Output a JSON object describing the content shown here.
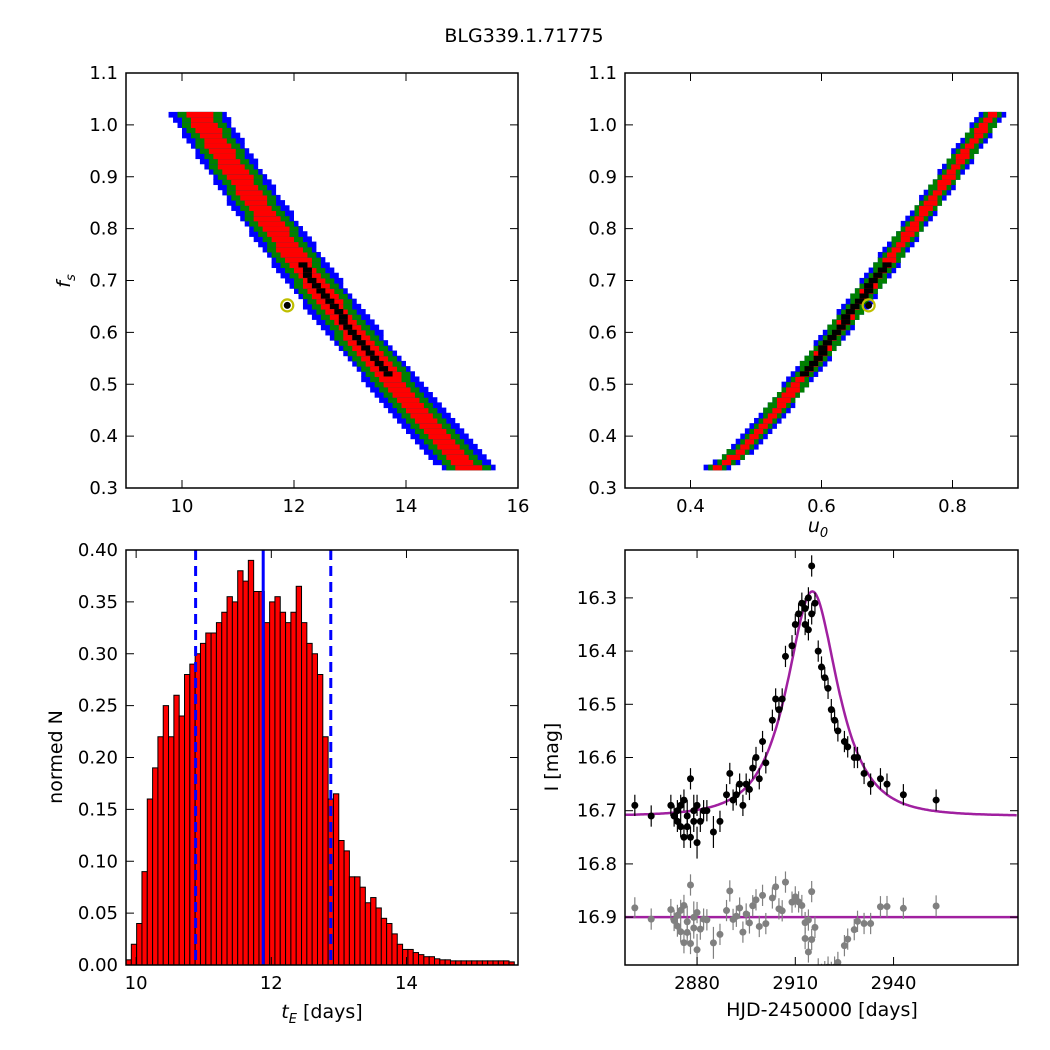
{
  "figure_title": "BLG339.1.71775",
  "colors": {
    "level1": "#ff0000",
    "level2": "#008000",
    "level3": "#0000ff",
    "best": "#000000",
    "marker_ring": "#bfbf00",
    "hist_bar": "#ff0000",
    "vline": "#0000ff",
    "model": "#a020a0",
    "data": "#000000",
    "residual": "#808080"
  },
  "chart_data": [
    {
      "type": "heatmap",
      "panel": "top-left",
      "xlabel": "",
      "ylabel": "f_s",
      "xlim": [
        9,
        16
      ],
      "ylim": [
        0.3,
        1.1
      ],
      "xticks": [
        "10",
        "12",
        "14",
        "16"
      ],
      "yticks": [
        "0.3",
        "0.4",
        "0.5",
        "0.6",
        "0.7",
        "0.8",
        "0.9",
        "1.0",
        "1.1"
      ],
      "band": {
        "fs_range": [
          0.34,
          1.02
        ],
        "center_at_fs1": 10.3,
        "center_at_fs034": 15.1,
        "half_width_red": 0.22,
        "half_width_green": 0.38,
        "half_width_blue": 0.5
      },
      "best_fit": {
        "x": 11.88,
        "y": 0.652
      }
    },
    {
      "type": "heatmap",
      "panel": "top-right",
      "xlabel": "u_0",
      "ylabel": "",
      "xlim": [
        0.3,
        0.9
      ],
      "ylim": [
        0.3,
        1.1
      ],
      "xticks": [
        "0.4",
        "0.6",
        "0.8"
      ],
      "yticks": [
        "0.3",
        "0.4",
        "0.5",
        "0.6",
        "0.7",
        "0.8",
        "0.9",
        "1.0",
        "1.1"
      ],
      "band": {
        "fs_range": [
          0.34,
          1.02
        ],
        "center_at_fs034": 0.44,
        "center_at_fs1": 0.86,
        "half_width_red": 0.008,
        "half_width_green": 0.016,
        "half_width_blue": 0.02
      },
      "best_fit": {
        "x": 0.672,
        "y": 0.652
      }
    },
    {
      "type": "bar",
      "panel": "bottom-left",
      "xlabel": "t_E [days]",
      "ylabel": "normed N",
      "xlim": [
        9.85,
        15.65
      ],
      "ylim": [
        0.0,
        0.4
      ],
      "xticks": [
        "10",
        "12",
        "14"
      ],
      "yticks": [
        "0.00",
        "0.05",
        "0.10",
        "0.15",
        "0.20",
        "0.25",
        "0.30",
        "0.35",
        "0.40"
      ],
      "bin_start": 9.85,
      "bin_width": 0.0787,
      "values": [
        0.005,
        0.02,
        0.04,
        0.09,
        0.16,
        0.19,
        0.22,
        0.25,
        0.22,
        0.26,
        0.24,
        0.28,
        0.29,
        0.3,
        0.31,
        0.32,
        0.32,
        0.33,
        0.34,
        0.355,
        0.35,
        0.38,
        0.37,
        0.39,
        0.36,
        0.36,
        0.33,
        0.35,
        0.355,
        0.34,
        0.33,
        0.34,
        0.365,
        0.33,
        0.31,
        0.3,
        0.28,
        0.22,
        0.16,
        0.165,
        0.12,
        0.11,
        0.085,
        0.085,
        0.075,
        0.06,
        0.065,
        0.055,
        0.045,
        0.04,
        0.03,
        0.02,
        0.015,
        0.015,
        0.012,
        0.01,
        0.008,
        0.008,
        0.006,
        0.005,
        0.005,
        0.004,
        0.004,
        0.004,
        0.004,
        0.004,
        0.004,
        0.004,
        0.004,
        0.004,
        0.004,
        0.004,
        0.003
      ],
      "vlines": {
        "best": 11.88,
        "lower": 10.88,
        "upper": 12.88
      }
    },
    {
      "type": "scatter",
      "panel": "bottom-right",
      "xlabel": "HJD-2450000 [days]",
      "ylabel": "I [mag]",
      "xlim": [
        2858,
        2978
      ],
      "ylim": [
        16.99,
        16.21
      ],
      "xticks": [
        "2880",
        "2910",
        "2940"
      ],
      "yticks": [
        "16.3",
        "16.4",
        "16.5",
        "16.6",
        "16.7",
        "16.8",
        "16.9"
      ],
      "model": {
        "t0": 2915.2,
        "u0": 0.672,
        "tE": 11.88,
        "fs": 0.652,
        "baseline": 16.71
      },
      "residual_offset": 16.9,
      "data_x": [
        2861,
        2866,
        2872,
        2873,
        2874,
        2874,
        2875,
        2875,
        2876,
        2876,
        2877,
        2877,
        2878,
        2878,
        2879,
        2879,
        2880,
        2880,
        2881,
        2882,
        2883,
        2885,
        2887,
        2889,
        2890,
        2891,
        2892,
        2893,
        2894,
        2895,
        2896,
        2897,
        2898,
        2899,
        2900,
        2901,
        2903,
        2904,
        2905,
        2906,
        2907,
        2909,
        2910,
        2911,
        2912,
        2913,
        2913,
        2914,
        2914,
        2915,
        2915,
        2916,
        2917,
        2918,
        2919,
        2920,
        2921,
        2922,
        2923,
        2925,
        2926,
        2928,
        2929,
        2931,
        2933,
        2936,
        2938,
        2943,
        2953
      ],
      "data_y": [
        16.69,
        16.71,
        16.69,
        16.71,
        16.72,
        16.7,
        16.73,
        16.69,
        16.75,
        16.68,
        16.71,
        16.73,
        16.64,
        16.75,
        16.7,
        16.72,
        16.76,
        16.69,
        16.72,
        16.7,
        16.7,
        16.74,
        16.72,
        16.67,
        16.63,
        16.68,
        16.67,
        16.65,
        16.69,
        16.65,
        16.66,
        16.62,
        16.6,
        16.64,
        16.57,
        16.61,
        16.53,
        16.49,
        16.51,
        16.49,
        16.41,
        16.39,
        16.35,
        16.33,
        16.31,
        16.35,
        16.32,
        16.36,
        16.3,
        16.33,
        16.24,
        16.31,
        16.4,
        16.43,
        16.45,
        16.47,
        16.51,
        16.53,
        16.55,
        16.57,
        16.58,
        16.6,
        16.6,
        16.63,
        16.65,
        16.64,
        16.65,
        16.67,
        16.68
      ],
      "data_err": [
        0.02,
        0.02,
        0.02,
        0.02,
        0.02,
        0.02,
        0.02,
        0.02,
        0.02,
        0.02,
        0.03,
        0.02,
        0.02,
        0.02,
        0.03,
        0.02,
        0.03,
        0.02,
        0.02,
        0.02,
        0.02,
        0.03,
        0.02,
        0.02,
        0.02,
        0.02,
        0.02,
        0.02,
        0.02,
        0.02,
        0.02,
        0.02,
        0.02,
        0.02,
        0.02,
        0.02,
        0.02,
        0.02,
        0.02,
        0.02,
        0.02,
        0.02,
        0.02,
        0.02,
        0.02,
        0.02,
        0.02,
        0.02,
        0.02,
        0.02,
        0.02,
        0.02,
        0.02,
        0.02,
        0.02,
        0.02,
        0.02,
        0.02,
        0.02,
        0.02,
        0.02,
        0.02,
        0.02,
        0.02,
        0.02,
        0.02,
        0.02,
        0.02,
        0.02
      ]
    }
  ]
}
